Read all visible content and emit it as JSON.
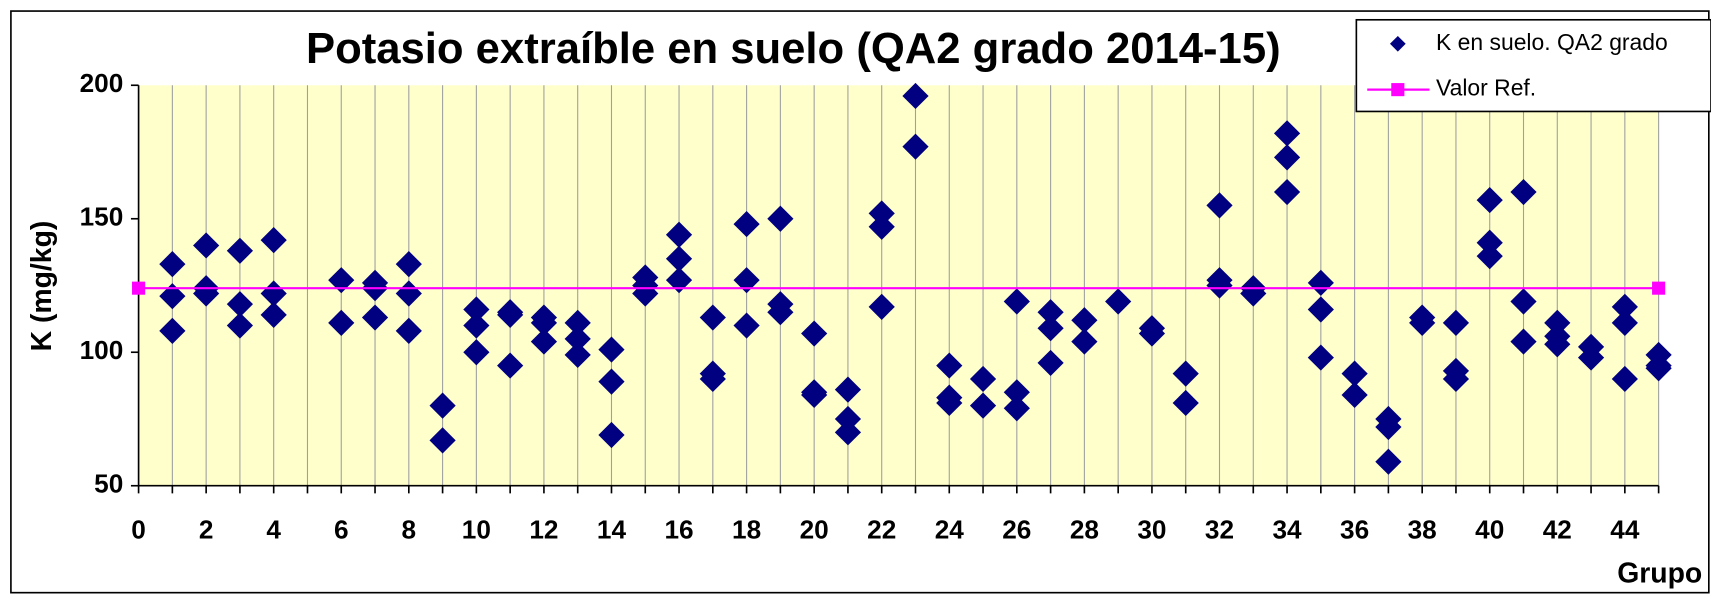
{
  "chart_data": {
    "type": "scatter",
    "title": "Potasio extraíble en suelo (QA2 grado 2014-15)",
    "y_label": "K (mg/kg)",
    "x_label": "Grupo",
    "xlim": [
      0,
      45
    ],
    "xticks": [
      0,
      2,
      4,
      6,
      8,
      10,
      12,
      14,
      16,
      18,
      20,
      22,
      24,
      26,
      28,
      30,
      32,
      34,
      36,
      38,
      40,
      42,
      44
    ],
    "xminorticks": [
      1,
      3,
      5,
      7,
      9,
      11,
      13,
      15,
      17,
      19,
      21,
      23,
      25,
      27,
      29,
      31,
      33,
      35,
      37,
      39,
      41,
      43,
      45
    ],
    "ylim": [
      50,
      200
    ],
    "yticks": [
      50,
      100,
      150,
      200
    ],
    "grid": "x",
    "legend": "top-right",
    "background": "#ffffcc",
    "series": [
      {
        "name": "K en suelo. QA2 grado",
        "color": "#000080",
        "marker": "diamond",
        "x": [
          1,
          1,
          1,
          2,
          2,
          2,
          3,
          3,
          3,
          4,
          4,
          4,
          6,
          6,
          7,
          7,
          7,
          8,
          8,
          8,
          9,
          9,
          10,
          10,
          10,
          11,
          11,
          11,
          12,
          12,
          12,
          13,
          13,
          13,
          14,
          14,
          14,
          15,
          15,
          15,
          16,
          16,
          16,
          17,
          17,
          17,
          18,
          18,
          18,
          19,
          19,
          19,
          20,
          20,
          20,
          21,
          21,
          21,
          22,
          22,
          22,
          23,
          23,
          24,
          24,
          24,
          25,
          25,
          26,
          26,
          26,
          27,
          27,
          27,
          28,
          28,
          29,
          30,
          30,
          31,
          31,
          32,
          32,
          32,
          33,
          33,
          34,
          34,
          34,
          35,
          35,
          35,
          36,
          36,
          37,
          37,
          37,
          38,
          38,
          39,
          39,
          39,
          40,
          40,
          40,
          41,
          41,
          41,
          42,
          42,
          42,
          43,
          43,
          44,
          44,
          44,
          45,
          45,
          45
        ],
        "values": [
          133,
          121,
          108,
          140,
          124,
          122,
          138,
          118,
          110,
          142,
          122,
          114,
          127,
          111,
          126,
          124,
          113,
          133,
          122,
          108,
          80,
          67,
          116,
          110,
          100,
          115,
          114,
          95,
          113,
          111,
          104,
          111,
          105,
          99,
          101,
          89,
          69,
          128,
          125,
          122,
          144,
          135,
          127,
          113,
          92,
          90,
          148,
          127,
          110,
          150,
          118,
          115,
          107,
          85,
          84,
          86,
          75,
          70,
          152,
          147,
          117,
          196,
          177,
          95,
          83,
          81,
          90,
          80,
          119,
          85,
          79,
          115,
          109,
          96,
          112,
          104,
          119,
          109,
          107,
          92,
          81,
          155,
          127,
          125,
          124,
          122,
          182,
          173,
          160,
          126,
          116,
          98,
          92,
          84,
          75,
          72,
          59,
          113,
          111,
          111,
          93,
          90,
          157,
          141,
          136,
          160,
          119,
          104,
          111,
          106,
          103,
          102,
          98,
          117,
          111,
          90,
          99,
          95,
          94
        ]
      },
      {
        "name": "Valor Ref.",
        "color": "#ff00ff",
        "marker": "square",
        "line": true,
        "x": [
          0,
          45
        ],
        "values": [
          124,
          124
        ]
      }
    ]
  }
}
